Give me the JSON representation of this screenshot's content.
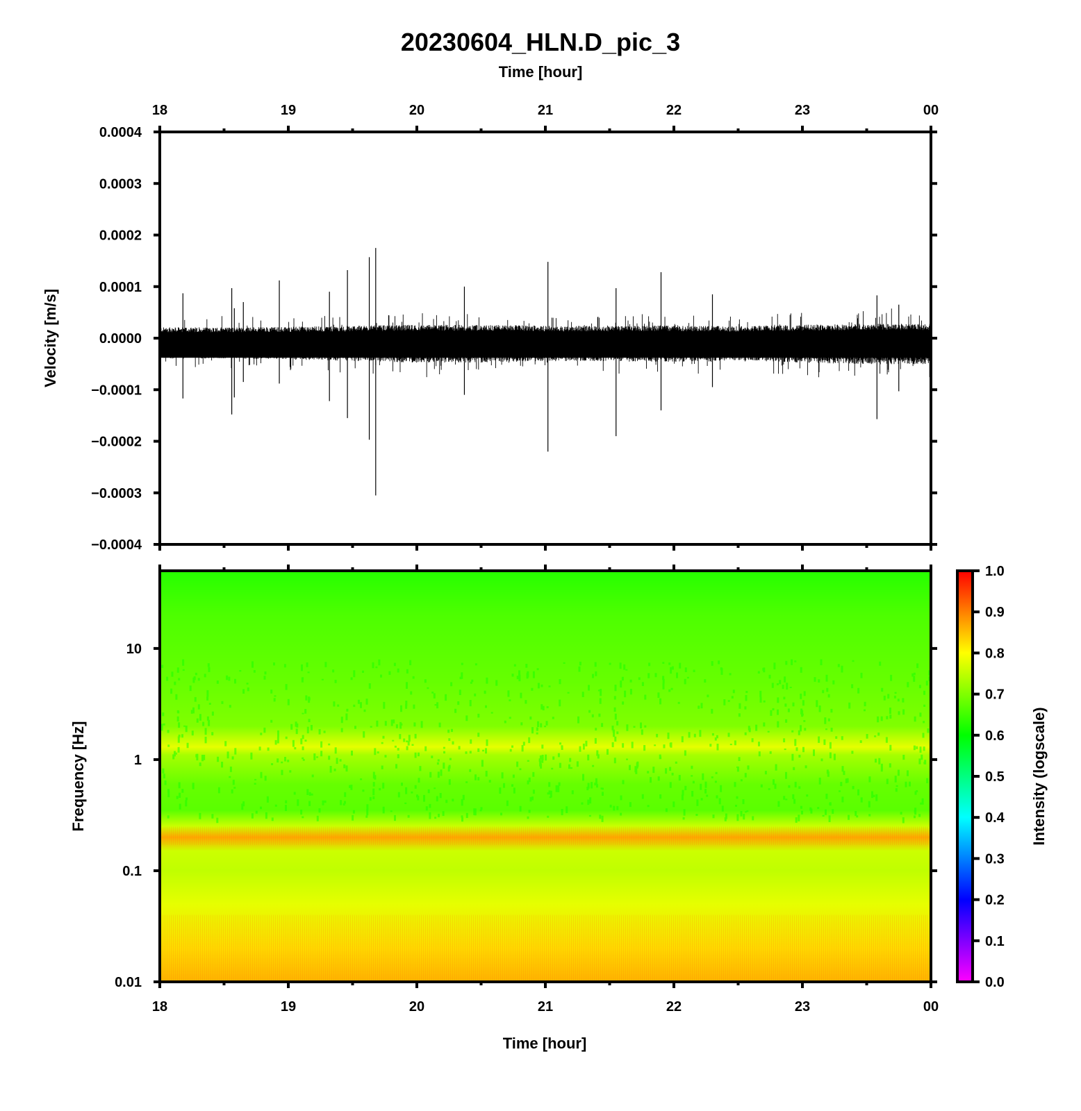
{
  "title": "20230604_HLN.D_pic_3",
  "top_axis_label": "Time [hour]",
  "bottom_axis_label": "Time [hour]",
  "chart_data": [
    {
      "type": "line",
      "xlabel": "Time [hour]",
      "ylabel": "Velocity [m/s]",
      "xlim": [
        18,
        24
      ],
      "ylim": [
        -0.0004,
        0.0004
      ],
      "x_tick_labels": [
        "18",
        "19",
        "20",
        "21",
        "22",
        "23",
        "00"
      ],
      "y_tick_labels": [
        "0.0004",
        "0.0003",
        "0.0002",
        "0.0001",
        "0.0000",
        "−0.0001",
        "−0.0002",
        "−0.0003",
        "−0.0004"
      ],
      "y_tick_values": [
        0.0004,
        0.0003,
        0.0002,
        0.0001,
        0,
        -0.0001,
        -0.0002,
        -0.0003,
        -0.0004
      ],
      "noise_envelope": [
        {
          "t": 18.0,
          "amp": 2.1e-05
        },
        {
          "t": 18.5,
          "amp": 2.1e-05
        },
        {
          "t": 19.0,
          "amp": 2.2e-05
        },
        {
          "t": 19.5,
          "amp": 2.4e-05
        },
        {
          "t": 20.0,
          "amp": 2.6e-05
        },
        {
          "t": 20.5,
          "amp": 2.6e-05
        },
        {
          "t": 21.0,
          "amp": 2.4e-05
        },
        {
          "t": 21.5,
          "amp": 2.4e-05
        },
        {
          "t": 22.0,
          "amp": 2.5e-05
        },
        {
          "t": 22.5,
          "amp": 2.3e-05
        },
        {
          "t": 23.0,
          "amp": 2.6e-05
        },
        {
          "t": 23.5,
          "amp": 2.8e-05
        },
        {
          "t": 24.0,
          "amp": 2.8e-05
        }
      ],
      "spikes": [
        {
          "t": 18.18,
          "max": 8.7e-05,
          "min": -0.000117
        },
        {
          "t": 18.56,
          "max": 9.7e-05,
          "min": -0.000148
        },
        {
          "t": 18.58,
          "max": 5.8e-05,
          "min": -0.000115
        },
        {
          "t": 18.65,
          "max": 7e-05,
          "min": -8.5e-05
        },
        {
          "t": 18.93,
          "max": 0.000112,
          "min": -8.8e-05
        },
        {
          "t": 19.32,
          "max": 9e-05,
          "min": -0.000122
        },
        {
          "t": 19.46,
          "max": 0.000132,
          "min": -0.000155
        },
        {
          "t": 19.63,
          "max": 0.000157,
          "min": -0.000197
        },
        {
          "t": 19.68,
          "max": 0.000175,
          "min": -0.000305
        },
        {
          "t": 20.37,
          "max": 0.0001,
          "min": -0.00011
        },
        {
          "t": 21.02,
          "max": 0.000148,
          "min": -0.00022
        },
        {
          "t": 21.55,
          "max": 9.7e-05,
          "min": -0.00019
        },
        {
          "t": 21.9,
          "max": 0.000128,
          "min": -0.00014
        },
        {
          "t": 22.3,
          "max": 8.5e-05,
          "min": -9.5e-05
        },
        {
          "t": 23.58,
          "max": 8.3e-05,
          "min": -0.000157
        },
        {
          "t": 23.75,
          "max": 6.5e-05,
          "min": -0.000103
        }
      ]
    },
    {
      "type": "heatmap",
      "xlabel": "Time [hour]",
      "ylabel": "Frequency [Hz]",
      "xlim": [
        18,
        24
      ],
      "ylim": [
        0.01,
        50
      ],
      "yscale": "log",
      "x_tick_labels": [
        "18",
        "19",
        "20",
        "21",
        "22",
        "23",
        "00"
      ],
      "y_tick_labels": [
        "10",
        "1",
        "0.1",
        "0.01"
      ],
      "y_tick_values": [
        10,
        1,
        0.1,
        0.01
      ],
      "colorbar": {
        "label": "Intensity (logscale)",
        "range": [
          0,
          1
        ],
        "tick_labels": [
          "1.0",
          "0.9",
          "0.8",
          "0.7",
          "0.6",
          "0.5",
          "0.4",
          "0.3",
          "0.2",
          "0.1",
          "0.0"
        ],
        "colors": [
          "#ff00ff",
          "#8000ff",
          "#0000ff",
          "#0080ff",
          "#00ffff",
          "#00ff80",
          "#00ff00",
          "#80ff00",
          "#ffff00",
          "#ff8000",
          "#ff0000"
        ]
      },
      "intensity_profile": [
        {
          "freq": 50,
          "value": 0.63
        },
        {
          "freq": 20,
          "value": 0.66
        },
        {
          "freq": 10,
          "value": 0.67
        },
        {
          "freq": 5,
          "value": 0.68
        },
        {
          "freq": 2,
          "value": 0.7
        },
        {
          "freq": 1.3,
          "value": 0.78
        },
        {
          "freq": 1.1,
          "value": 0.73
        },
        {
          "freq": 0.6,
          "value": 0.68
        },
        {
          "freq": 0.35,
          "value": 0.67
        },
        {
          "freq": 0.25,
          "value": 0.76
        },
        {
          "freq": 0.2,
          "value": 0.87
        },
        {
          "freq": 0.15,
          "value": 0.76
        },
        {
          "freq": 0.1,
          "value": 0.75
        },
        {
          "freq": 0.05,
          "value": 0.78
        },
        {
          "freq": 0.02,
          "value": 0.83
        },
        {
          "freq": 0.01,
          "value": 0.86
        }
      ]
    }
  ]
}
